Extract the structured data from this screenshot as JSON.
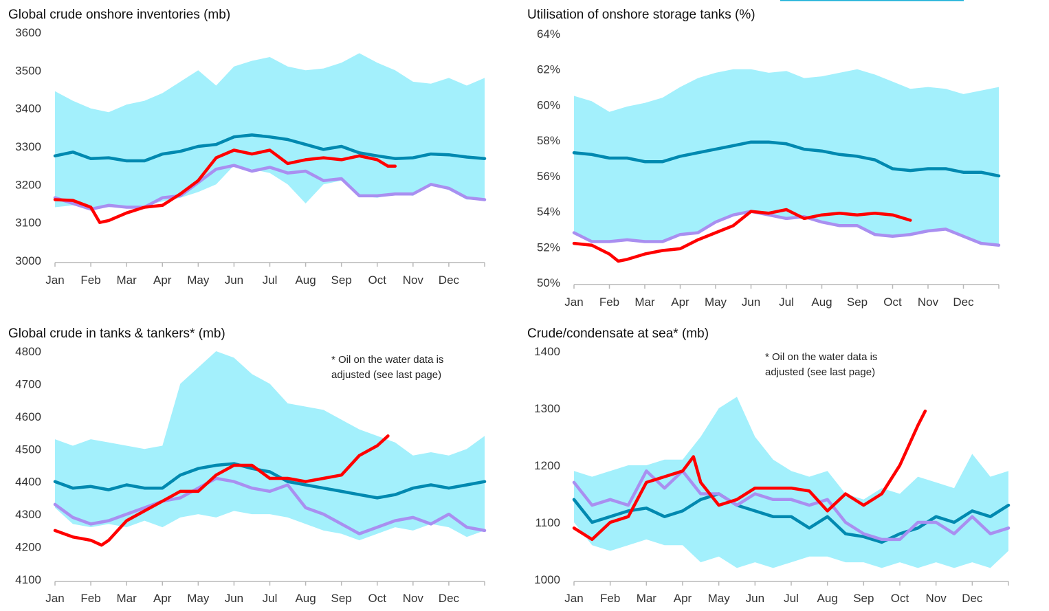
{
  "top_accent_color": "#1ab0d8",
  "colors": {
    "band": "#a3f0fc",
    "avg": "#0089b0",
    "prev": "#a98ff0",
    "current": "#ff0000"
  },
  "chart_data": [
    {
      "type": "area",
      "title": "Global crude onshore inventories (mb)",
      "ylim": [
        3000,
        3600
      ],
      "yticks": [
        3000,
        3100,
        3200,
        3300,
        3400,
        3500,
        3600
      ],
      "ytick_labels": [
        "3000",
        "3100",
        "3200",
        "3300",
        "3400",
        "3500",
        "3600"
      ],
      "categories": [
        "Jan",
        "Feb",
        "Mar",
        "Apr",
        "May",
        "Jun",
        "Jul",
        "Aug",
        "Sep",
        "Oct",
        "Nov",
        "Dec"
      ],
      "x_unit": "month index (0 = start of Jan, 12 = end of Dec), half-month steps",
      "band": {
        "upper": [
          3445,
          3420,
          3400,
          3390,
          3410,
          3420,
          3440,
          3470,
          3500,
          3460,
          3510,
          3525,
          3535,
          3510,
          3500,
          3505,
          3520,
          3545,
          3520,
          3500,
          3470,
          3465,
          3480,
          3460,
          3480
        ],
        "lower": [
          3140,
          3145,
          3135,
          3140,
          3140,
          3145,
          3155,
          3165,
          3180,
          3200,
          3250,
          3240,
          3230,
          3200,
          3150,
          3200,
          3210,
          3170,
          3165,
          3175,
          3170,
          3200,
          3185,
          3160,
          3160
        ]
      },
      "series": [
        {
          "color": "#0089b0",
          "x": [
            0,
            0.5,
            1,
            1.5,
            2,
            2.5,
            3,
            3.5,
            4,
            4.5,
            5,
            5.5,
            6,
            6.5,
            7,
            7.5,
            8,
            8.5,
            9,
            9.5,
            10,
            10.5,
            11,
            11.5,
            12
          ],
          "values": [
            3275,
            3285,
            3268,
            3270,
            3262,
            3262,
            3280,
            3287,
            3300,
            3305,
            3325,
            3330,
            3325,
            3318,
            3305,
            3292,
            3300,
            3283,
            3275,
            3268,
            3270,
            3280,
            3278,
            3272,
            3268
          ]
        },
        {
          "color": "#a98ff0",
          "x": [
            0,
            0.5,
            1,
            1.5,
            2,
            2.5,
            3,
            3.5,
            4,
            4.5,
            5,
            5.5,
            6,
            6.5,
            7,
            7.5,
            8,
            8.5,
            9,
            9.5,
            10,
            10.5,
            11,
            11.5,
            12
          ],
          "values": [
            3165,
            3150,
            3135,
            3145,
            3140,
            3140,
            3165,
            3170,
            3205,
            3240,
            3250,
            3235,
            3245,
            3230,
            3235,
            3210,
            3215,
            3170,
            3170,
            3175,
            3175,
            3200,
            3190,
            3165,
            3160
          ]
        },
        {
          "color": "#ff0000",
          "x": [
            0,
            0.5,
            1,
            1.25,
            1.5,
            2,
            2.5,
            3,
            3.5,
            4,
            4.5,
            5,
            5.5,
            6,
            6.5,
            7,
            7.5,
            8,
            8.5,
            9,
            9.3,
            9.5
          ],
          "values": [
            3160,
            3158,
            3140,
            3100,
            3105,
            3125,
            3140,
            3145,
            3175,
            3210,
            3270,
            3290,
            3280,
            3290,
            3255,
            3265,
            3270,
            3265,
            3275,
            3265,
            3248,
            3248
          ]
        }
      ]
    },
    {
      "type": "area",
      "title": "Utilisation of onshore storage tanks (%)",
      "ylim": [
        50,
        64
      ],
      "yticks": [
        50,
        52,
        54,
        56,
        58,
        60,
        62,
        64
      ],
      "ytick_labels": [
        "50%",
        "52%",
        "54%",
        "56%",
        "58%",
        "60%",
        "62%",
        "64%"
      ],
      "categories": [
        "Jan",
        "Feb",
        "Mar",
        "Apr",
        "May",
        "Jun",
        "Jul",
        "Aug",
        "Sep",
        "Oct",
        "Nov",
        "Dec"
      ],
      "band": {
        "upper": [
          60.5,
          60.2,
          59.6,
          59.9,
          60.1,
          60.4,
          61.0,
          61.5,
          61.8,
          62.0,
          62.0,
          61.8,
          61.9,
          61.5,
          61.6,
          61.8,
          62.0,
          61.7,
          61.3,
          60.9,
          61.0,
          60.9,
          60.6,
          60.8,
          61.0
        ],
        "lower": [
          52.8,
          52.3,
          52.3,
          52.4,
          52.3,
          52.3,
          52.7,
          52.8,
          53.4,
          53.8,
          54.0,
          53.8,
          53.6,
          53.7,
          53.4,
          53.2,
          53.2,
          52.7,
          52.6,
          52.7,
          52.9,
          53.0,
          52.6,
          52.2,
          52.1
        ]
      },
      "series": [
        {
          "color": "#0089b0",
          "x": [
            0,
            0.5,
            1,
            1.5,
            2,
            2.5,
            3,
            3.5,
            4,
            4.5,
            5,
            5.5,
            6,
            6.5,
            7,
            7.5,
            8,
            8.5,
            9,
            9.5,
            10,
            10.5,
            11,
            11.5,
            12
          ],
          "values": [
            57.3,
            57.2,
            57.0,
            57.0,
            56.8,
            56.8,
            57.1,
            57.3,
            57.5,
            57.7,
            57.9,
            57.9,
            57.8,
            57.5,
            57.4,
            57.2,
            57.1,
            56.9,
            56.4,
            56.3,
            56.4,
            56.4,
            56.2,
            56.2,
            56.0
          ]
        },
        {
          "color": "#a98ff0",
          "x": [
            0,
            0.5,
            1,
            1.5,
            2,
            2.5,
            3,
            3.5,
            4,
            4.5,
            5,
            5.5,
            6,
            6.5,
            7,
            7.5,
            8,
            8.5,
            9,
            9.5,
            10,
            10.5,
            11,
            11.5,
            12
          ],
          "values": [
            52.8,
            52.3,
            52.3,
            52.4,
            52.3,
            52.3,
            52.7,
            52.8,
            53.4,
            53.8,
            54.0,
            53.8,
            53.6,
            53.7,
            53.4,
            53.2,
            53.2,
            52.7,
            52.6,
            52.7,
            52.9,
            53.0,
            52.6,
            52.2,
            52.1
          ]
        },
        {
          "color": "#ff0000",
          "x": [
            0,
            0.5,
            1,
            1.25,
            1.5,
            2,
            2.5,
            3,
            3.5,
            4,
            4.5,
            5,
            5.5,
            6,
            6.5,
            7,
            7.5,
            8,
            8.5,
            9,
            9.5
          ],
          "values": [
            52.2,
            52.1,
            51.6,
            51.2,
            51.3,
            51.6,
            51.8,
            51.9,
            52.4,
            52.8,
            53.2,
            54.0,
            53.9,
            54.1,
            53.6,
            53.8,
            53.9,
            53.8,
            53.9,
            53.8,
            53.5
          ]
        }
      ]
    },
    {
      "type": "area",
      "title": "Global crude in tanks & tankers* (mb)",
      "note_lines": [
        "* Oil on the water data is",
        "adjusted (see last page)"
      ],
      "ylim": [
        4100,
        4800
      ],
      "yticks": [
        4100,
        4200,
        4300,
        4400,
        4500,
        4600,
        4700,
        4800
      ],
      "ytick_labels": [
        "4100",
        "4200",
        "4300",
        "4400",
        "4500",
        "4600",
        "4700",
        "4800"
      ],
      "categories": [
        "Jan",
        "Feb",
        "Mar",
        "Apr",
        "May",
        "Jun",
        "Jul",
        "Aug",
        "Sep",
        "Oct",
        "Nov",
        "Dec"
      ],
      "band": {
        "upper": [
          4530,
          4510,
          4530,
          4520,
          4510,
          4500,
          4510,
          4700,
          4750,
          4800,
          4780,
          4730,
          4700,
          4640,
          4630,
          4620,
          4590,
          4560,
          4540,
          4520,
          4480,
          4490,
          4480,
          4500,
          4540
        ],
        "lower": [
          4320,
          4270,
          4260,
          4270,
          4260,
          4280,
          4260,
          4290,
          4300,
          4290,
          4310,
          4300,
          4300,
          4290,
          4270,
          4250,
          4240,
          4220,
          4240,
          4260,
          4250,
          4270,
          4260,
          4230,
          4250
        ]
      },
      "series": [
        {
          "color": "#0089b0",
          "x": [
            0,
            0.5,
            1,
            1.5,
            2,
            2.5,
            3,
            3.5,
            4,
            4.5,
            5,
            5.5,
            6,
            6.5,
            7,
            7.5,
            8,
            8.5,
            9,
            9.5,
            10,
            10.5,
            11,
            11.5,
            12
          ],
          "values": [
            4400,
            4380,
            4385,
            4375,
            4390,
            4380,
            4380,
            4420,
            4440,
            4450,
            4455,
            4440,
            4430,
            4400,
            4390,
            4380,
            4370,
            4360,
            4350,
            4360,
            4380,
            4390,
            4380,
            4390,
            4400
          ]
        },
        {
          "color": "#a98ff0",
          "x": [
            0,
            0.5,
            1,
            1.5,
            2,
            2.5,
            3,
            3.5,
            4,
            4.5,
            5,
            5.5,
            6,
            6.5,
            7,
            7.5,
            8,
            8.5,
            9,
            9.5,
            10,
            10.5,
            11,
            11.5,
            12
          ],
          "values": [
            4330,
            4290,
            4270,
            4280,
            4300,
            4320,
            4340,
            4350,
            4380,
            4410,
            4400,
            4380,
            4370,
            4390,
            4320,
            4300,
            4270,
            4240,
            4260,
            4280,
            4290,
            4270,
            4300,
            4260,
            4250
          ]
        },
        {
          "color": "#ff0000",
          "x": [
            0,
            0.5,
            1,
            1.3,
            1.5,
            2,
            2.5,
            3,
            3.5,
            4,
            4.5,
            5,
            5.5,
            6,
            6.5,
            7,
            7.5,
            8,
            8.5,
            9,
            9.3
          ],
          "values": [
            4250,
            4230,
            4220,
            4205,
            4220,
            4280,
            4310,
            4340,
            4370,
            4370,
            4420,
            4450,
            4450,
            4410,
            4410,
            4400,
            4410,
            4420,
            4480,
            4510,
            4540
          ]
        }
      ]
    },
    {
      "type": "area",
      "title": "Crude/condensate at sea* (mb)",
      "note_lines": [
        "* Oil on the water data is",
        "adjusted (see last page)"
      ],
      "ylim": [
        1000,
        1400
      ],
      "yticks": [
        1000,
        1100,
        1200,
        1300,
        1400
      ],
      "ytick_labels": [
        "1000",
        "1100",
        "1200",
        "1300",
        "1400"
      ],
      "categories": [
        "Jan",
        "Feb",
        "Mar",
        "Apr",
        "May",
        "Jun",
        "Jul",
        "Aug",
        "Sep",
        "Oct",
        "Nov",
        "Dec"
      ],
      "band": {
        "upper": [
          1190,
          1180,
          1190,
          1200,
          1200,
          1210,
          1210,
          1250,
          1300,
          1320,
          1250,
          1210,
          1190,
          1180,
          1190,
          1150,
          1140,
          1160,
          1150,
          1180,
          1170,
          1160,
          1220,
          1180,
          1190
        ],
        "lower": [
          1100,
          1060,
          1050,
          1060,
          1070,
          1060,
          1060,
          1030,
          1040,
          1020,
          1030,
          1020,
          1030,
          1040,
          1040,
          1030,
          1030,
          1020,
          1030,
          1020,
          1030,
          1020,
          1030,
          1020,
          1050
        ]
      },
      "series": [
        {
          "color": "#0089b0",
          "x": [
            0,
            0.5,
            1,
            1.5,
            2,
            2.5,
            3,
            3.5,
            4,
            4.5,
            5,
            5.5,
            6,
            6.5,
            7,
            7.5,
            8,
            8.5,
            9,
            9.5,
            10,
            10.5,
            11,
            11.5,
            12
          ],
          "values": [
            1140,
            1100,
            1110,
            1120,
            1125,
            1110,
            1120,
            1140,
            1150,
            1130,
            1120,
            1110,
            1110,
            1090,
            1110,
            1080,
            1075,
            1065,
            1080,
            1090,
            1110,
            1100,
            1120,
            1110,
            1130
          ]
        },
        {
          "color": "#a98ff0",
          "x": [
            0,
            0.5,
            1,
            1.5,
            2,
            2.5,
            3,
            3.5,
            4,
            4.5,
            5,
            5.5,
            6,
            6.5,
            7,
            7.5,
            8,
            8.5,
            9,
            9.5,
            10,
            10.5,
            11,
            11.5,
            12
          ],
          "values": [
            1170,
            1130,
            1140,
            1130,
            1190,
            1160,
            1190,
            1150,
            1150,
            1130,
            1150,
            1140,
            1140,
            1130,
            1140,
            1100,
            1080,
            1070,
            1070,
            1100,
            1100,
            1080,
            1110,
            1080,
            1090
          ]
        },
        {
          "color": "#ff0000",
          "x": [
            0,
            0.5,
            1,
            1.5,
            2,
            2.5,
            3,
            3.3,
            3.5,
            4,
            4.5,
            5,
            5.5,
            6,
            6.5,
            7,
            7.5,
            8,
            8.5,
            9,
            9.5,
            9.7
          ],
          "values": [
            1090,
            1070,
            1100,
            1110,
            1170,
            1180,
            1190,
            1215,
            1170,
            1130,
            1140,
            1160,
            1160,
            1160,
            1155,
            1120,
            1150,
            1130,
            1150,
            1200,
            1270,
            1295
          ]
        }
      ]
    }
  ]
}
